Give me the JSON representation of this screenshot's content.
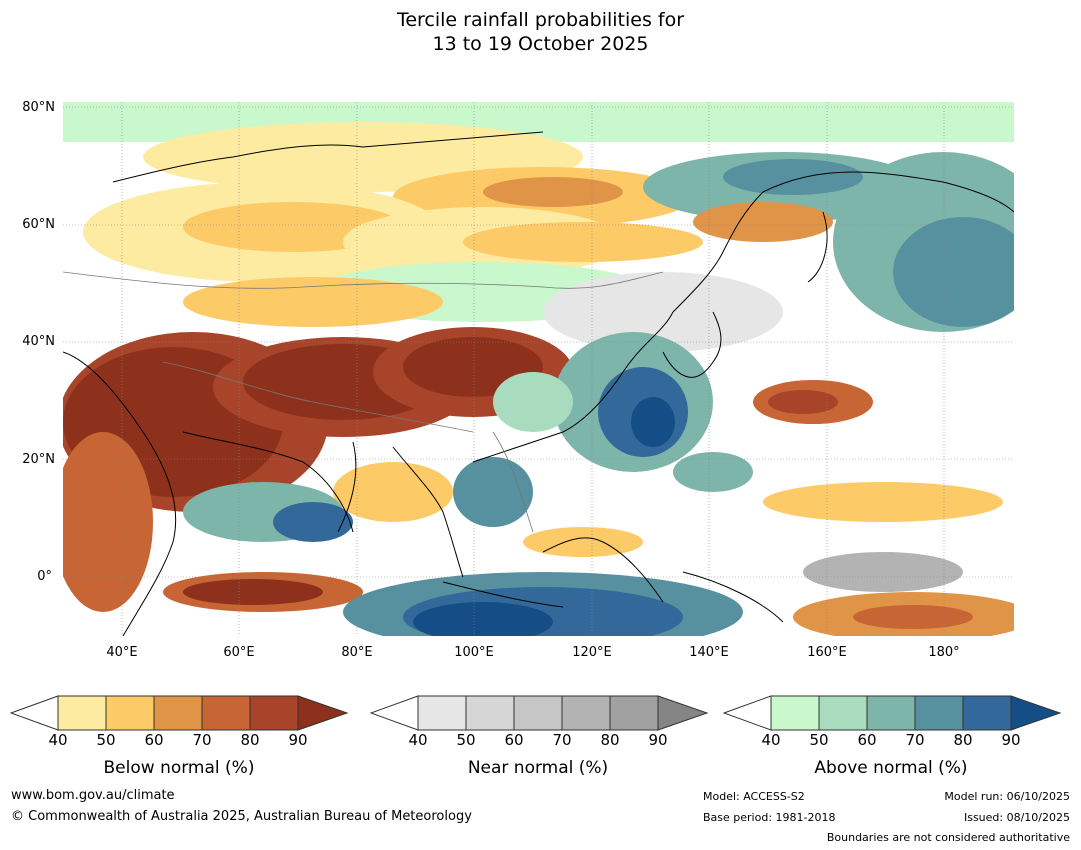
{
  "title_line1": "Tercile rainfall probabilities for",
  "title_line2": "13 to 19 October 2025",
  "lat_labels": [
    "80°N",
    "60°N",
    "40°N",
    "20°N",
    "0°"
  ],
  "lon_labels": [
    "40°E",
    "60°E",
    "80°E",
    "100°E",
    "120°E",
    "140°E",
    "160°E",
    "180°"
  ],
  "colors": {
    "below": [
      "#fdeba2",
      "#fccb68",
      "#e09447",
      "#c76535",
      "#a84429",
      "#8d311d"
    ],
    "near": [
      "#e6e6e6",
      "#d6d6d6",
      "#c6c6c6",
      "#b3b3b3",
      "#a1a1a1",
      "#858585"
    ],
    "above": [
      "#c8f8cb",
      "#a9dcbe",
      "#7db5aa",
      "#5791a0",
      "#33689a",
      "#154d87"
    ]
  },
  "colorbars": [
    {
      "title": "Below normal (%)",
      "ticks": [
        "40",
        "50",
        "60",
        "70",
        "80",
        "90"
      ]
    },
    {
      "title": "Near normal (%)",
      "ticks": [
        "40",
        "50",
        "60",
        "70",
        "80",
        "90"
      ]
    },
    {
      "title": "Above normal (%)",
      "ticks": [
        "40",
        "50",
        "60",
        "70",
        "80",
        "90"
      ]
    }
  ],
  "footer": {
    "website": "www.bom.gov.au/climate",
    "copyright": "© Commonwealth of Australia 2025, Australian Bureau of Meteorology",
    "model": "Model: ACCESS-S2",
    "base_period": "Base period: 1981-2018",
    "model_run": "Model run: 06/10/2025",
    "issued": "Issued: 08/10/2025",
    "disclaimer": "Boundaries are not considered authoritative"
  }
}
